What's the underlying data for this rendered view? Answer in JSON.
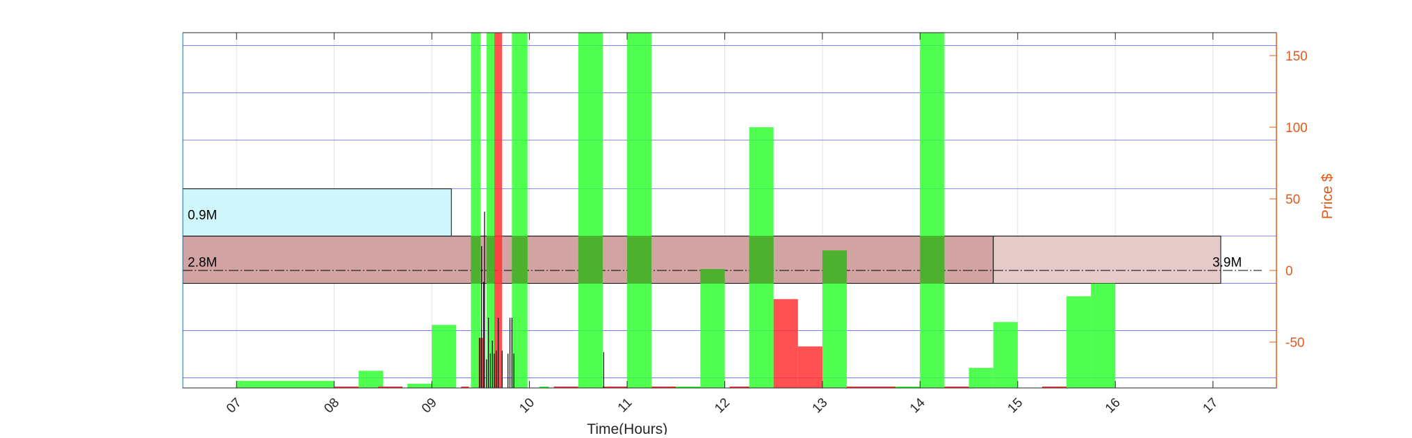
{
  "chart_data": {
    "type": "bar",
    "xlabel": "Time(Hours)",
    "ylabel_right": "Price $",
    "xlim": [
      6.45,
      17.65
    ],
    "ylim_right": [
      -82,
      166
    ],
    "x_ticks": [
      7,
      8,
      9,
      10,
      11,
      12,
      13,
      14,
      15,
      16,
      17
    ],
    "x_tick_labels": [
      "07",
      "08",
      "09",
      "10",
      "11",
      "12",
      "13",
      "14",
      "15",
      "16",
      "17"
    ],
    "y_ticks_right": [
      -50,
      0,
      50,
      100,
      150
    ],
    "y_tick_labels_right": [
      "-50",
      "0",
      "50",
      "100",
      "150"
    ],
    "grid": "on",
    "horizontal_levels": [
      -75,
      -42,
      -9,
      24,
      57,
      91,
      124,
      157
    ],
    "colors": {
      "up_bar": "#33ff33",
      "down_bar": "#ff3333",
      "price_axis": "#e05a1a",
      "level_line": "#3333ff",
      "box_blue_fill": "#cef6fb",
      "box_dark_fill": "#d1a3a3",
      "box_light_fill": "#e6c9c9",
      "overlap_green": "#4fa52c"
    },
    "volume_boxes": [
      {
        "label": "0.9M",
        "x0": 6.45,
        "x1": 9.2,
        "y_low": 24,
        "y_high": 57,
        "color": "box_blue_fill",
        "label_side": "left"
      },
      {
        "label": "2.8M",
        "x0": 6.45,
        "x1": 14.75,
        "y_low": -9,
        "y_high": 24,
        "color": "box_dark_fill",
        "label_side": "left"
      },
      {
        "label": "3.9M",
        "x0": 14.75,
        "x1": 17.08,
        "y_low": -9,
        "y_high": 24,
        "color": "box_light_fill",
        "label_side": "right"
      }
    ],
    "series": [
      {
        "name": "up",
        "bars": [
          [
            7.0,
            8.0,
            -77
          ],
          [
            8.25,
            8.5,
            -70
          ],
          [
            8.75,
            9.0,
            -79
          ],
          [
            9.0,
            9.25,
            -38
          ],
          [
            9.4,
            9.5,
            166
          ],
          [
            9.56,
            9.64,
            166
          ],
          [
            9.82,
            9.98,
            166
          ],
          [
            10.5,
            10.75,
            166
          ],
          [
            11.0,
            11.25,
            166
          ],
          [
            11.75,
            12.0,
            1
          ],
          [
            12.25,
            12.5,
            100
          ],
          [
            13.0,
            13.25,
            14
          ],
          [
            14.0,
            14.25,
            166
          ],
          [
            14.5,
            14.75,
            -68
          ],
          [
            14.75,
            15.0,
            -36
          ],
          [
            15.5,
            15.75,
            -18
          ],
          [
            15.75,
            16.0,
            -9
          ]
        ]
      },
      {
        "name": "down",
        "bars": [
          [
            9.48,
            9.53,
            -47
          ],
          [
            9.64,
            9.72,
            166
          ],
          [
            12.5,
            12.75,
            -20
          ],
          [
            12.75,
            13.0,
            -53
          ]
        ]
      }
    ],
    "baseline_segments": [
      [
        8.0,
        8.25,
        "down"
      ],
      [
        8.45,
        8.7,
        "down"
      ],
      [
        9.3,
        9.38,
        "down"
      ],
      [
        10.1,
        10.2,
        "up"
      ],
      [
        10.25,
        10.5,
        "down"
      ],
      [
        10.75,
        11.0,
        "down"
      ],
      [
        11.25,
        11.5,
        "down"
      ],
      [
        11.5,
        11.75,
        "up"
      ],
      [
        12.05,
        12.25,
        "down"
      ],
      [
        13.25,
        13.75,
        "down"
      ],
      [
        13.75,
        14.0,
        "up"
      ],
      [
        14.25,
        14.5,
        "down"
      ],
      [
        15.25,
        15.5,
        "down"
      ]
    ],
    "trade_lines": [
      [
        9.49,
        -82,
        -47
      ],
      [
        9.51,
        -82,
        17
      ],
      [
        9.53,
        -82,
        -8
      ],
      [
        9.54,
        -82,
        41
      ],
      [
        9.56,
        -82,
        -62
      ],
      [
        9.58,
        -82,
        -33
      ],
      [
        9.6,
        -82,
        -58
      ],
      [
        9.62,
        -82,
        -49
      ],
      [
        9.64,
        -82,
        -58
      ],
      [
        9.66,
        -82,
        -56
      ],
      [
        9.68,
        -82,
        -33
      ],
      [
        9.72,
        -82,
        -56
      ],
      [
        9.78,
        -82,
        -58
      ],
      [
        9.8,
        -82,
        -33
      ],
      [
        9.82,
        -82,
        -33
      ],
      [
        9.84,
        -82,
        -58
      ],
      [
        10.76,
        -82,
        -57
      ]
    ],
    "price_line": {
      "y": 0,
      "x0": 6.45,
      "x1": 17.5
    }
  }
}
